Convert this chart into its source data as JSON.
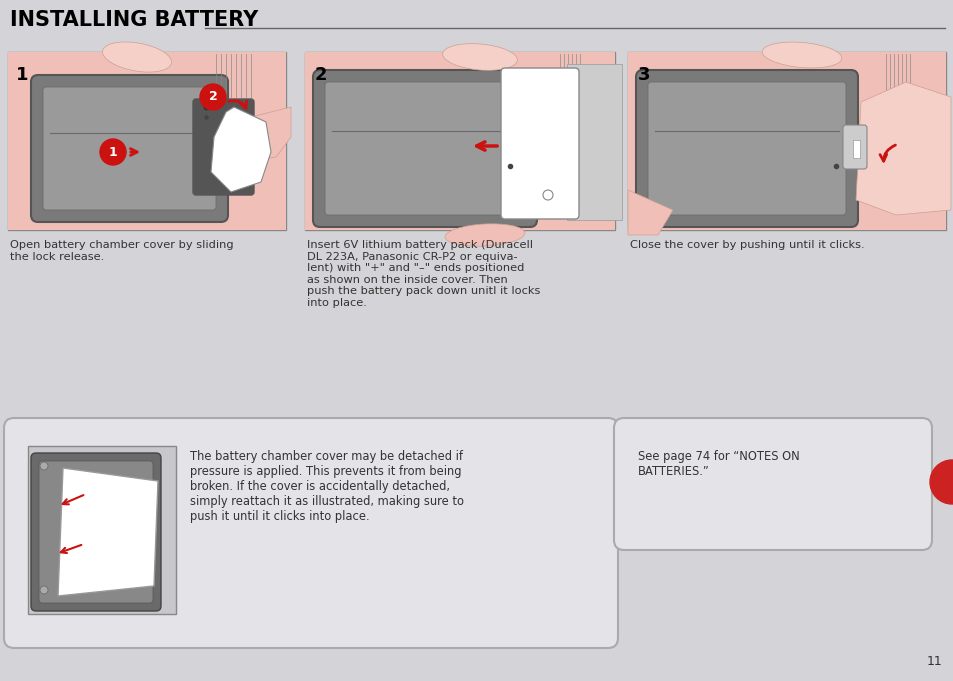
{
  "title": "INSTALLING BATTERY",
  "bg_color": "#d4d4d8",
  "page_number": "11",
  "step1_caption": "Open battery chamber cover by sliding\nthe lock release.",
  "step2_caption": "Insert 6V lithium battery pack (Duracell\nDL 223A, Panasonic CR-P2 or equiva-\nlent) with \"+\" and \"–\" ends positioned\nas shown on the inside cover. Then\npush the battery pack down unitl it locks\ninto place.",
  "step3_caption": "Close the cover by pushing until it clicks.",
  "note1_text": "The battery chamber cover may be detached if\npressure is applied. This prevents it from being\nbroken. If the cover is accidentally detached,\nsimply reattach it as illustrated, making sure to\npush it until it clicks into place.",
  "note2_text": "See page 74 for “NOTES ON\nBATTERIES.”",
  "skin_color": "#f0c0b8",
  "skin_light": "#f5d0c8",
  "camera_dark": "#7a7a7a",
  "camera_mid": "#9a9a9a",
  "camera_light": "#b8b8b8",
  "camera_edge": "#555555",
  "red_color": "#cc1111",
  "caption_color": "#333333",
  "title_color": "#000000",
  "line_color": "#666666",
  "note_box_color": "#e4e4e8",
  "note_border_color": "#aaaaaa",
  "red_dot_color": "#cc2222",
  "white": "#ffffff",
  "img_border": "#888888",
  "img_bg": "#f5f5f5"
}
